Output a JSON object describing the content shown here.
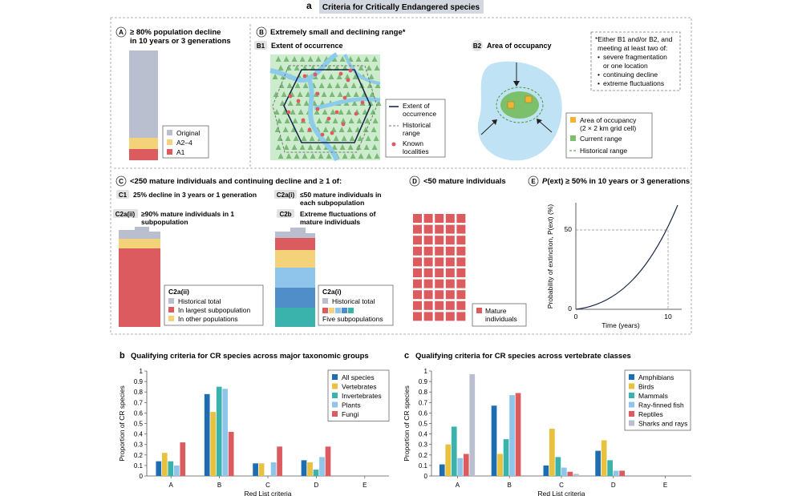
{
  "panel_a": {
    "letter": "a",
    "title": "Criteria for Critically Endangered species",
    "A": {
      "letter": "A",
      "title_l1": "≥ 80% population decline",
      "title_l2": "in 10 years or 3 generations",
      "legend": [
        "Original",
        "A2–4",
        "A1"
      ]
    },
    "B": {
      "letter": "B",
      "title": "Extremely small and declining range*",
      "B1": {
        "letter": "B1",
        "title": "Extent of occurrence"
      },
      "B2": {
        "letter": "B2",
        "title": "Area of occupancy"
      },
      "legend_b1": {
        "extent_l1": "Extent of",
        "extent_l2": "occurrence",
        "hist_l1": "Historical",
        "hist_l2": "range",
        "known_l1": "Known",
        "known_l2": "localities"
      },
      "legend_b2": {
        "aoo_l1": "Area of occupancy",
        "aoo_l2": "(2 × 2 km grid cell)",
        "current": "Current range",
        "historical": "Historical range"
      },
      "note": {
        "l1": "*Either B1 and/or B2, and",
        "l2": "meeting at least two of:",
        "b1": "severe fragmentation",
        "b1b": "or one location",
        "b2": "continuing decline",
        "b3": "extreme fluctuations"
      }
    },
    "C": {
      "letter": "C",
      "title": "<250 mature individuals and continuing decline and ≥ 1 of:",
      "C1": {
        "letter": "C1",
        "text": "25% decline in 3 years or 1 generation"
      },
      "C2aii": {
        "letter": "C2a(ii)",
        "text_l1": "≥90% mature individuals in 1",
        "text_l2": "subpopulation"
      },
      "C2ai": {
        "letter": "C2a(i)",
        "text_l1": "≤50 mature individuals in",
        "text_l2": "each subpopulation"
      },
      "C2b": {
        "letter": "C2b",
        "text_l1": "Extreme fluctuations of",
        "text_l2": "mature individuals"
      },
      "legend_left": {
        "title": "C2a(ii)",
        "items": [
          "Historical total",
          "In largest subpopulation",
          "In other populations"
        ]
      },
      "legend_right": {
        "title": "C2a(i)",
        "items": [
          "Historical total",
          "Five subpopulations"
        ]
      }
    },
    "D": {
      "letter": "D",
      "title": "<50 mature individuals",
      "legend_l1": "Mature",
      "legend_l2": "individuals"
    },
    "E": {
      "letter": "E",
      "title_pre": "P",
      "title_post": "(ext) ≥ 50% in 10 years or 3 generations",
      "ylabel": "Probability of extinction, P(ext) (%)",
      "xlabel": "Time (years)",
      "yticks": [
        "0",
        "50"
      ],
      "xticks": [
        "0",
        "10"
      ]
    }
  },
  "colors": {
    "gray": "#b9bfcf",
    "yellow": "#f3d27a",
    "red": "#dc5b5f",
    "blue_dark": "#1f6db1",
    "blue_light": "#8fc5ea",
    "teal": "#39b3ab",
    "gold": "#e8c23e",
    "lake": "#bfe3f5",
    "green": "#7cc06b",
    "orange": "#f2b233"
  },
  "chart_data": [
    {
      "type": "bar",
      "panel_letter": "b",
      "title": "Qualifying criteria for CR species across major taxonomic groups",
      "xlabel": "Red List criteria",
      "ylabel": "Proportion of CR species",
      "ylim": [
        0,
        1
      ],
      "yticks": [
        "0",
        "0.1",
        "0.2",
        "0.3",
        "0.4",
        "0.5",
        "0.6",
        "0.7",
        "0.8",
        "0.9",
        "1"
      ],
      "categories": [
        "A",
        "B",
        "C",
        "D",
        "E"
      ],
      "legend_position": "top-right",
      "series": [
        {
          "name": "All species",
          "color": "#1f6db1",
          "values": [
            0.14,
            0.78,
            0.12,
            0.15,
            0.0
          ]
        },
        {
          "name": "Vertebrates",
          "color": "#e8c23e",
          "values": [
            0.22,
            0.61,
            0.12,
            0.13,
            0.0
          ]
        },
        {
          "name": "Invertebrates",
          "color": "#39b3ab",
          "values": [
            0.14,
            0.85,
            0.0,
            0.06,
            0.0
          ]
        },
        {
          "name": "Plants",
          "color": "#8fc5ea",
          "values": [
            0.1,
            0.83,
            0.13,
            0.18,
            0.0
          ]
        },
        {
          "name": "Fungi",
          "color": "#dc5b5f",
          "values": [
            0.32,
            0.42,
            0.28,
            0.28,
            0.0
          ]
        }
      ]
    },
    {
      "type": "bar",
      "panel_letter": "c",
      "title": "Qualifying criteria for CR species across vertebrate classes",
      "xlabel": "Red List criteria",
      "ylabel": "Proportion of CR species",
      "ylim": [
        0,
        1
      ],
      "yticks": [
        "0",
        "0.1",
        "0.2",
        "0.3",
        "0.4",
        "0.5",
        "0.6",
        "0.7",
        "0.8",
        "0.9",
        "1"
      ],
      "categories": [
        "A",
        "B",
        "C",
        "D",
        "E"
      ],
      "legend_position": "top-right",
      "series": [
        {
          "name": "Amphibians",
          "color": "#1f6db1",
          "values": [
            0.11,
            0.67,
            0.1,
            0.24,
            0.0
          ]
        },
        {
          "name": "Birds",
          "color": "#e8c23e",
          "values": [
            0.3,
            0.21,
            0.45,
            0.34,
            0.0
          ]
        },
        {
          "name": "Mammals",
          "color": "#39b3ab",
          "values": [
            0.47,
            0.35,
            0.18,
            0.15,
            0.0
          ]
        },
        {
          "name": "Ray-finned fish",
          "color": "#8fc5ea",
          "values": [
            0.17,
            0.77,
            0.08,
            0.05,
            0.0
          ]
        },
        {
          "name": "Reptiles",
          "color": "#dc5b5f",
          "values": [
            0.21,
            0.79,
            0.04,
            0.05,
            0.0
          ]
        },
        {
          "name": "Sharks and rays",
          "color": "#b9bfcf",
          "values": [
            0.97,
            0.0,
            0.02,
            0.0,
            0.0
          ]
        }
      ]
    }
  ]
}
